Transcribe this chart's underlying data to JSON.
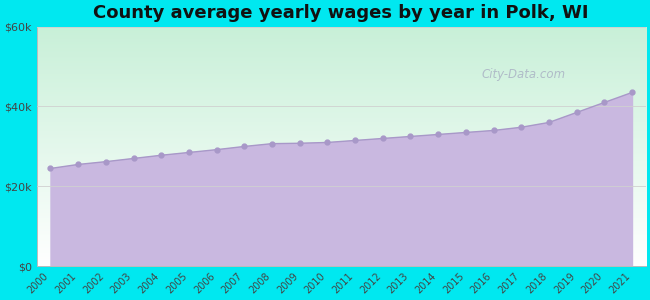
{
  "title": "County average yearly wages by year in Polk, WI",
  "years": [
    2000,
    2001,
    2002,
    2003,
    2004,
    2005,
    2006,
    2007,
    2008,
    2009,
    2010,
    2011,
    2012,
    2013,
    2014,
    2015,
    2016,
    2017,
    2018,
    2019,
    2020,
    2021
  ],
  "wages": [
    24500,
    25500,
    26200,
    27000,
    27800,
    28500,
    29200,
    30000,
    30700,
    30800,
    31000,
    31500,
    32000,
    32500,
    33000,
    33500,
    34000,
    34800,
    36000,
    38500,
    41000,
    43500
  ],
  "ylim": [
    0,
    60000
  ],
  "yticks": [
    0,
    20000,
    40000,
    60000
  ],
  "ytick_labels": [
    "$0",
    "$20k",
    "$40k",
    "$60k"
  ],
  "fill_color": "#c9b8e0",
  "line_color": "#a898c8",
  "marker_color": "#a898c8",
  "bg_grad_top": "#c8f0d8",
  "bg_grad_bottom": "#ffffff",
  "outer_bg": "#00e8f0",
  "title_color": "#111111",
  "title_fontsize": 13,
  "tick_label_color": "#444444",
  "watermark_text": "City-Data.com",
  "watermark_color": "#b0bcc8",
  "grid_color": "#d0d0d0",
  "grid_linewidth": 0.6
}
